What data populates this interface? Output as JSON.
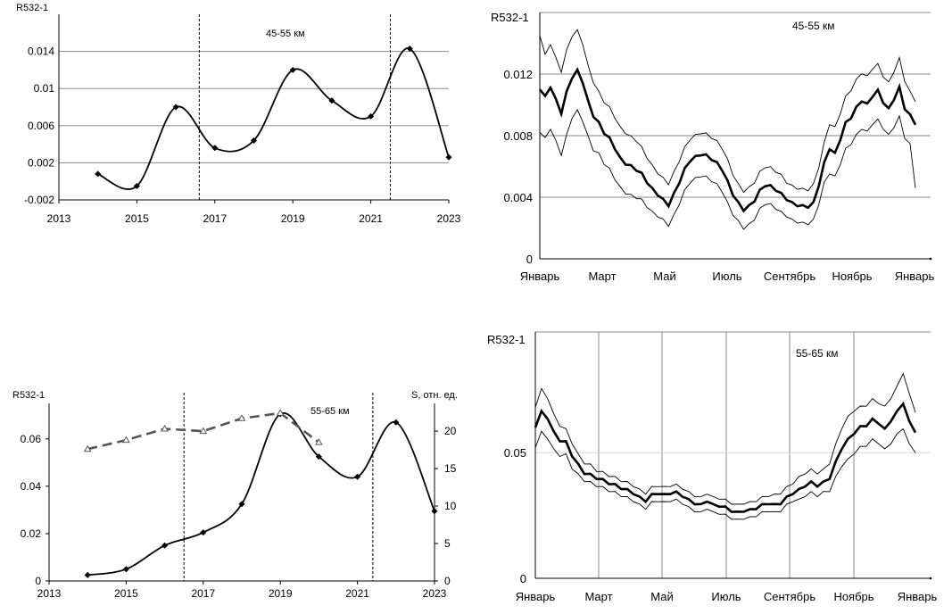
{
  "chart_data": [
    {
      "type": "line",
      "panel": "top-left",
      "ylabel": "R532-1",
      "annotation": "45-55 км",
      "x_ticks": [
        "2013",
        "2015",
        "2017",
        "2019",
        "2021",
        "2023"
      ],
      "y_ticks": [
        "-0.002",
        "0.002",
        "0.006",
        "0.01",
        "0.014"
      ],
      "xlim": [
        2013,
        2023
      ],
      "ylim": [
        -0.002,
        0.018
      ],
      "grid": "horizontal",
      "vlines": [
        2016.6,
        2021.5
      ],
      "series": [
        {
          "x": [
            2014,
            2015,
            2016,
            2017,
            2018,
            2019,
            2020,
            2021,
            2022,
            2023
          ],
          "values": [
            0.0008,
            -0.0005,
            0.008,
            0.0036,
            0.0044,
            0.012,
            0.0087,
            0.007,
            0.0143,
            0.0026
          ]
        }
      ]
    },
    {
      "type": "line",
      "panel": "top-right",
      "ylabel": "R532-1",
      "annotation": "45-55 км",
      "x_ticks": [
        "Январь",
        "Март",
        "Май",
        "Июль",
        "Сентябрь",
        "Ноябрь",
        "Январь"
      ],
      "y_ticks": [
        "0",
        "0.004",
        "0.008",
        "0.012"
      ],
      "ylim": [
        0,
        0.016
      ],
      "grid": "horizontal",
      "series": [
        {
          "role": "mean",
          "values": [
            0.011,
            0.0105,
            0.0112,
            0.0103,
            0.0095,
            0.0108,
            0.0118,
            0.0122,
            0.0115,
            0.0102,
            0.0093,
            0.0088,
            0.0082,
            0.0078,
            0.0072,
            0.0065,
            0.0062,
            0.006,
            0.0058,
            0.0055,
            0.005,
            0.0045,
            0.0042,
            0.0038,
            0.0035,
            0.0042,
            0.005,
            0.0058,
            0.0064,
            0.0066,
            0.0068,
            0.0067,
            0.0065,
            0.0062,
            0.0058,
            0.005,
            0.0042,
            0.0036,
            0.0032,
            0.0034,
            0.0038,
            0.0044,
            0.0048,
            0.0047,
            0.0045,
            0.0042,
            0.0039,
            0.0036,
            0.0035,
            0.0034,
            0.0034,
            0.0036,
            0.0048,
            0.0062,
            0.0072,
            0.0068,
            0.0078,
            0.0088,
            0.0092,
            0.0098,
            0.0103,
            0.01,
            0.0106,
            0.0109,
            0.0102,
            0.0097,
            0.0104,
            0.0111,
            0.0098,
            0.0093,
            0.0087
          ]
        },
        {
          "role": "upper",
          "values": [
            0.0145,
            0.0132,
            0.014,
            0.013,
            0.0122,
            0.0135,
            0.0145,
            0.0148,
            0.014,
            0.0125,
            0.0115,
            0.0108,
            0.0102,
            0.0098,
            0.0092,
            0.0085,
            0.0082,
            0.0079,
            0.0077,
            0.0072,
            0.0066,
            0.006,
            0.0056,
            0.0052,
            0.0049,
            0.0056,
            0.0064,
            0.0072,
            0.0078,
            0.008,
            0.0082,
            0.0081,
            0.0079,
            0.0076,
            0.0072,
            0.0064,
            0.0055,
            0.0048,
            0.0044,
            0.0046,
            0.005,
            0.0056,
            0.006,
            0.0059,
            0.0057,
            0.0054,
            0.005,
            0.0047,
            0.0046,
            0.0045,
            0.0045,
            0.0048,
            0.006,
            0.0075,
            0.0088,
            0.0085,
            0.0095,
            0.0105,
            0.011,
            0.0116,
            0.0121,
            0.0118,
            0.0124,
            0.0126,
            0.0119,
            0.0114,
            0.0122,
            0.013,
            0.0116,
            0.0108,
            0.0102
          ]
        },
        {
          "role": "lower",
          "values": [
            0.0082,
            0.0078,
            0.0085,
            0.0076,
            0.0068,
            0.008,
            0.0092,
            0.0096,
            0.009,
            0.0079,
            0.0071,
            0.0068,
            0.0062,
            0.0058,
            0.0052,
            0.0046,
            0.0043,
            0.0041,
            0.004,
            0.0038,
            0.0034,
            0.003,
            0.0028,
            0.0025,
            0.0022,
            0.0028,
            0.0036,
            0.0044,
            0.005,
            0.0052,
            0.0054,
            0.0053,
            0.0051,
            0.0048,
            0.0044,
            0.0036,
            0.0029,
            0.0024,
            0.002,
            0.0022,
            0.0026,
            0.0032,
            0.0036,
            0.0035,
            0.0033,
            0.003,
            0.0028,
            0.0025,
            0.0024,
            0.0023,
            0.0023,
            0.0025,
            0.0036,
            0.0049,
            0.0056,
            0.0053,
            0.0062,
            0.0071,
            0.0075,
            0.008,
            0.0085,
            0.0082,
            0.0088,
            0.009,
            0.0085,
            0.008,
            0.0086,
            0.0092,
            0.0079,
            0.0074,
            0.0046
          ]
        }
      ]
    },
    {
      "type": "line",
      "panel": "bottom-left",
      "ylabel": "R532-1",
      "y2label": "S, отн. ед.",
      "annotation": "55-65 км",
      "x_ticks": [
        "2013",
        "2015",
        "2017",
        "2019",
        "2021",
        "2023"
      ],
      "y_ticks": [
        "0",
        "0.02",
        "0.04",
        "0.06"
      ],
      "y2_ticks": [
        "0",
        "5",
        "10",
        "15",
        "20"
      ],
      "xlim": [
        2013,
        2023
      ],
      "ylim": [
        0,
        0.075
      ],
      "y2lim": [
        0,
        23.7
      ],
      "vlines": [
        2016.5,
        2021.4
      ],
      "series": [
        {
          "axis": "left",
          "style": "solid",
          "x": [
            2014,
            2015,
            2016,
            2017,
            2018,
            2019,
            2020,
            2021,
            2022,
            2023
          ],
          "values": [
            0.0025,
            0.005,
            0.015,
            0.0205,
            0.0325,
            0.0705,
            0.0525,
            0.044,
            0.067,
            0.0295
          ]
        },
        {
          "axis": "right",
          "style": "dashed",
          "x": [
            2014,
            2015,
            2016,
            2017,
            2018,
            2019,
            2020
          ],
          "values": [
            17.6,
            18.8,
            20.3,
            20.0,
            21.7,
            22.4,
            18.5
          ]
        }
      ]
    },
    {
      "type": "line",
      "panel": "bottom-right",
      "ylabel": "R532-1",
      "annotation": "55-65 км",
      "x_ticks": [
        "Январь",
        "Март",
        "Май",
        "Июль",
        "Сентябрь",
        "Ноябрь",
        "Январь"
      ],
      "y_ticks": [
        "0",
        "0.05"
      ],
      "ylim": [
        0,
        0.098
      ],
      "grid": "vertical",
      "series": [
        {
          "role": "mean",
          "values": [
            0.06,
            0.066,
            0.064,
            0.058,
            0.055,
            0.054,
            0.049,
            0.045,
            0.042,
            0.041,
            0.04,
            0.039,
            0.038,
            0.037,
            0.036,
            0.035,
            0.034,
            0.032,
            0.031,
            0.033,
            0.034,
            0.033,
            0.034,
            0.034,
            0.033,
            0.031,
            0.03,
            0.029,
            0.031,
            0.029,
            0.029,
            0.028,
            0.027,
            0.026,
            0.027,
            0.027,
            0.028,
            0.029,
            0.03,
            0.029,
            0.03,
            0.032,
            0.034,
            0.035,
            0.037,
            0.038,
            0.037,
            0.038,
            0.04,
            0.046,
            0.052,
            0.055,
            0.058,
            0.06,
            0.061,
            0.063,
            0.062,
            0.059,
            0.063,
            0.066,
            0.07,
            0.062,
            0.058
          ]
        },
        {
          "role": "upper",
          "values": [
            0.068,
            0.075,
            0.072,
            0.065,
            0.061,
            0.059,
            0.054,
            0.049,
            0.046,
            0.045,
            0.043,
            0.042,
            0.041,
            0.04,
            0.039,
            0.038,
            0.037,
            0.035,
            0.034,
            0.036,
            0.037,
            0.036,
            0.037,
            0.037,
            0.036,
            0.034,
            0.033,
            0.032,
            0.034,
            0.032,
            0.032,
            0.031,
            0.03,
            0.029,
            0.03,
            0.03,
            0.031,
            0.032,
            0.033,
            0.033,
            0.034,
            0.036,
            0.038,
            0.04,
            0.042,
            0.043,
            0.042,
            0.043,
            0.046,
            0.053,
            0.06,
            0.064,
            0.067,
            0.068,
            0.069,
            0.071,
            0.07,
            0.068,
            0.072,
            0.076,
            0.082,
            0.073,
            0.066
          ]
        },
        {
          "role": "lower",
          "values": [
            0.052,
            0.058,
            0.056,
            0.051,
            0.049,
            0.049,
            0.044,
            0.041,
            0.039,
            0.038,
            0.037,
            0.036,
            0.035,
            0.034,
            0.033,
            0.032,
            0.031,
            0.029,
            0.028,
            0.03,
            0.031,
            0.03,
            0.031,
            0.031,
            0.03,
            0.028,
            0.027,
            0.026,
            0.028,
            0.026,
            0.026,
            0.025,
            0.024,
            0.023,
            0.024,
            0.024,
            0.025,
            0.026,
            0.027,
            0.026,
            0.027,
            0.029,
            0.031,
            0.031,
            0.033,
            0.034,
            0.033,
            0.034,
            0.035,
            0.04,
            0.045,
            0.047,
            0.05,
            0.052,
            0.053,
            0.055,
            0.054,
            0.051,
            0.054,
            0.057,
            0.06,
            0.053,
            0.05
          ]
        }
      ]
    }
  ]
}
